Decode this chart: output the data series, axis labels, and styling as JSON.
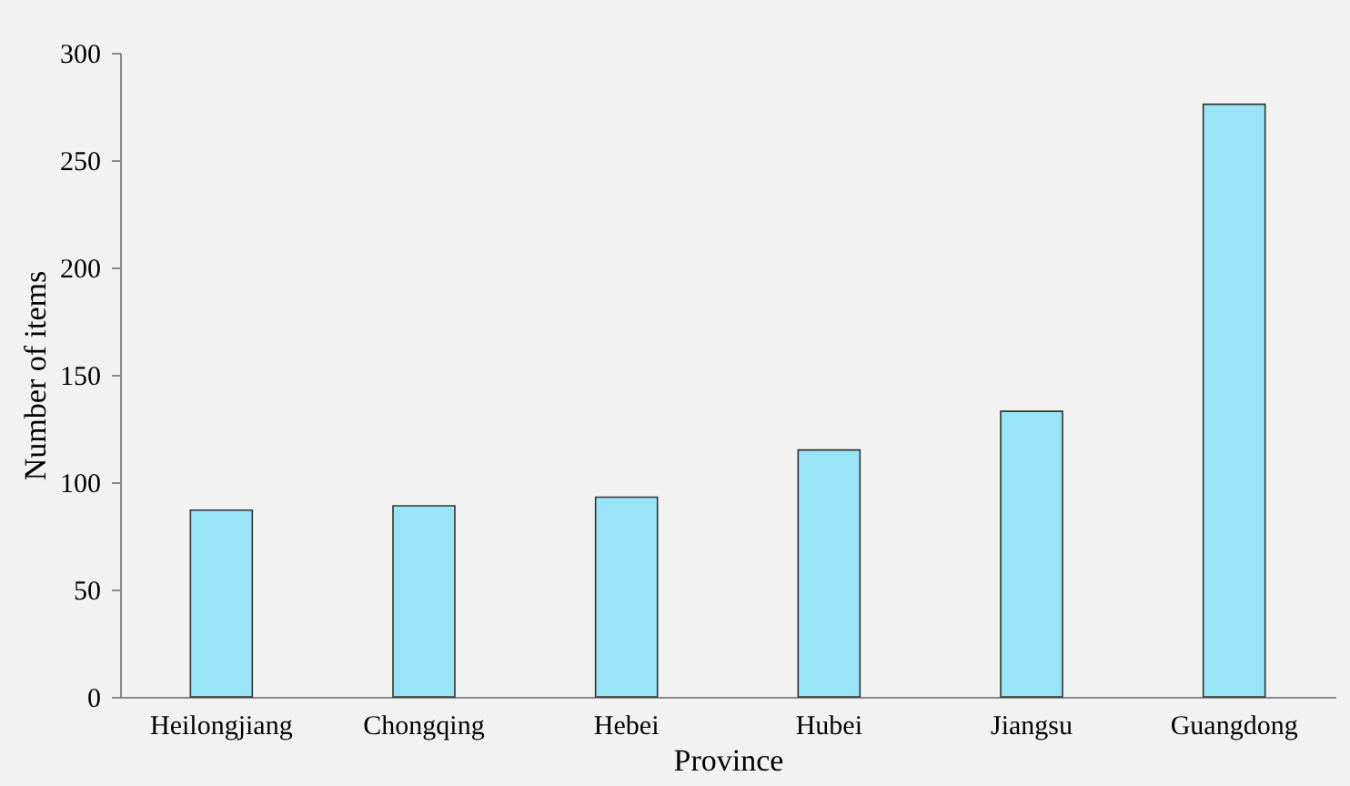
{
  "chart_data": {
    "type": "bar",
    "xlabel": "Province",
    "ylabel": "Number of items",
    "categories": [
      "Heilongjiang",
      "Chongqing",
      "Hebei",
      "Hubei",
      "Jiangsu",
      "Guangdong"
    ],
    "values": [
      87,
      89,
      93,
      115,
      133,
      276
    ],
    "color": "#99e5f8",
    "ylim": [
      0,
      300
    ],
    "yticks": [
      0,
      50,
      100,
      150,
      200,
      250,
      300
    ],
    "grid": false,
    "legend": false
  }
}
